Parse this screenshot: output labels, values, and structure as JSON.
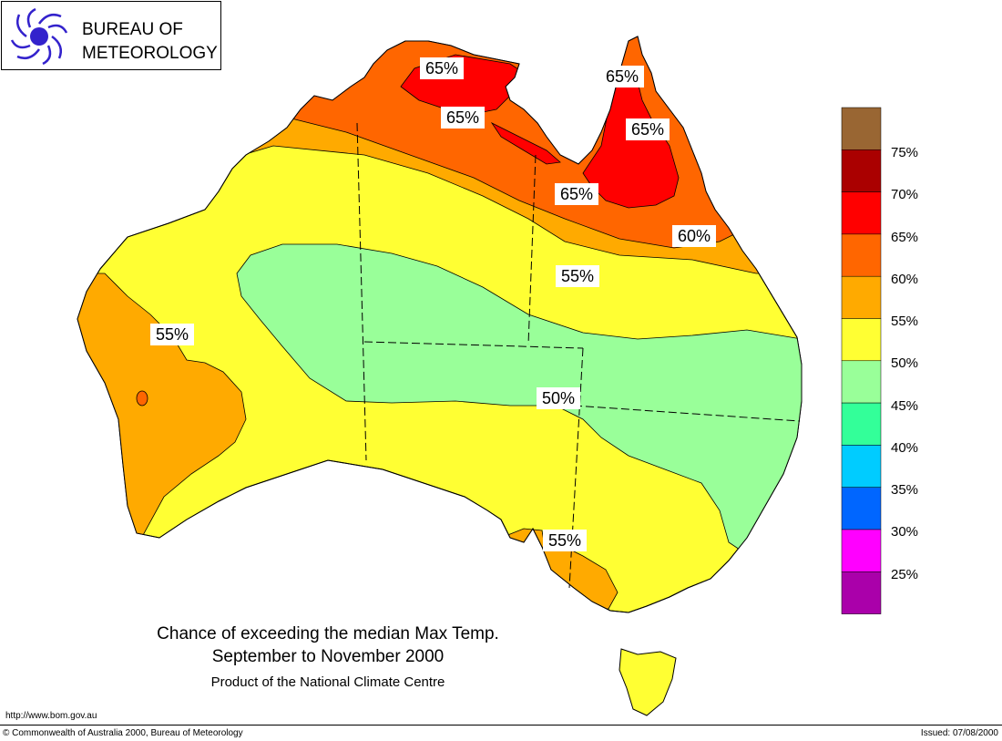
{
  "logo": {
    "line1": "BUREAU OF",
    "line2": "METEOROLOGY"
  },
  "map_labels": [
    "65%",
    "65%",
    "65%",
    "65%",
    "65%",
    "60%",
    "55%",
    "55%",
    "50%",
    "55%"
  ],
  "legend": {
    "labels": [
      "75%",
      "70%",
      "65%",
      "60%",
      "55%",
      "50%",
      "45%",
      "40%",
      "35%",
      "30%",
      "25%"
    ],
    "colors": [
      "#996633",
      "#aa0000",
      "#ff0000",
      "#ff6600",
      "#ffaa00",
      "#ffff33",
      "#99ff99",
      "#33ff99",
      "#00ccff",
      "#0066ff",
      "#ff00ff",
      "#aa00aa"
    ]
  },
  "title": {
    "line1": "Chance of exceeding the median Max Temp.",
    "line2": "September to November 2000",
    "line3": "Product of the National Climate Centre"
  },
  "footer": {
    "url": "http://www.bom.gov.au",
    "copyright": "© Commonwealth of Australia 2000, Bureau of Meteorology",
    "issued": "Issued: 07/08/2000"
  }
}
